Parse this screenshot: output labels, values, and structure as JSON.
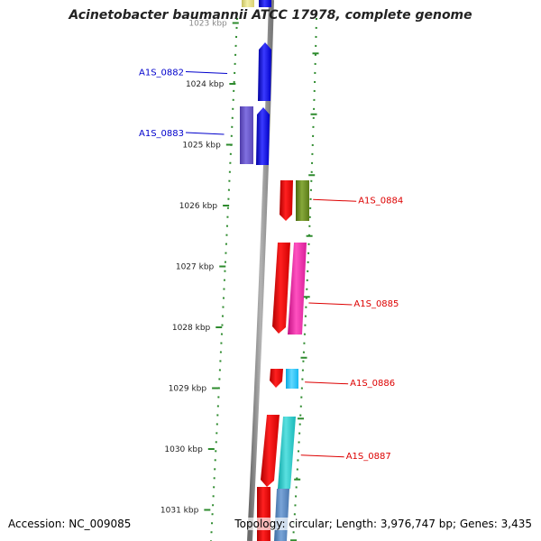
{
  "title": "Acinetobacter baumannii ATCC 17978, complete genome",
  "footer": {
    "accession": "Accession: NC_009085",
    "topology": "Topology: circular; Length: 3,976,747 bp; Genes: 3,435"
  },
  "colors": {
    "backbone": "#8e8e8e",
    "tick": "#2e8b2e",
    "label_forward": "#0000cc",
    "label_reverse": "#dd0000"
  },
  "ticks": [
    {
      "kbp": 1023,
      "label": "1023 kbp"
    },
    {
      "kbp": 1024,
      "label": "1024 kbp"
    },
    {
      "kbp": 1025,
      "label": "1025 kbp"
    },
    {
      "kbp": 1026,
      "label": "1026 kbp"
    },
    {
      "kbp": 1027,
      "label": "1027 kbp"
    },
    {
      "kbp": 1028,
      "label": "1028 kbp"
    },
    {
      "kbp": 1029,
      "label": "1029 kbp"
    },
    {
      "kbp": 1030,
      "label": "1030 kbp"
    },
    {
      "kbp": 1031,
      "label": "1031 kbp"
    }
  ],
  "gene_labels": [
    {
      "name": "A1S_0882",
      "strand": "forward",
      "kbp": 1023.8
    },
    {
      "name": "A1S_0883",
      "strand": "forward",
      "kbp": 1024.8
    },
    {
      "name": "A1S_0884",
      "strand": "reverse",
      "kbp": 1025.9
    },
    {
      "name": "A1S_0885",
      "strand": "reverse",
      "kbp": 1027.6
    },
    {
      "name": "A1S_0886",
      "strand": "reverse",
      "kbp": 1028.9
    },
    {
      "name": "A1S_0887",
      "strand": "reverse",
      "kbp": 1030.1
    }
  ]
}
